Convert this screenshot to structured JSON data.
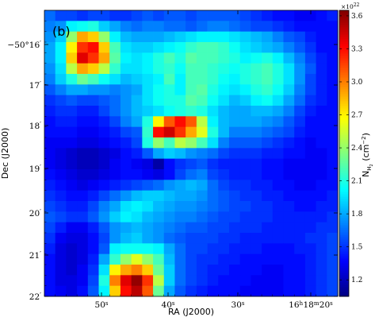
{
  "chart_data": {
    "type": "heatmap",
    "panel_label": "(b)",
    "xlabel": "RA (J2000)",
    "ylabel": "Dec (J2000)",
    "x_ticks": [
      {
        "label": "50",
        "sup": "s"
      },
      {
        "label": "40",
        "sup": "s"
      },
      {
        "label": "30",
        "sup": "s"
      },
      {
        "label": "16",
        "sup": "h",
        "label2": "18",
        "sup2": "m",
        "label3": "20",
        "sup3": "s"
      }
    ],
    "y_ticks": [
      {
        "label": "−50°16",
        "sup": "′"
      },
      {
        "label": "17",
        "sup": "′"
      },
      {
        "label": "18",
        "sup": "′"
      },
      {
        "label": "19",
        "sup": "′"
      },
      {
        "label": "20",
        "sup": "′"
      },
      {
        "label": "21",
        "sup": "′"
      },
      {
        "label": "22",
        "sup": "′"
      }
    ],
    "colorbar": {
      "label": "N",
      "label_sub": "H",
      "label_subsub": "2",
      "label_unit": " (cm",
      "label_unit_sup": "−2",
      "label_close": ")",
      "multiplier": "×10",
      "multiplier_exp": "22",
      "range": [
        1.05,
        3.65
      ],
      "ticks": [
        "1.2",
        "1.5",
        "1.8",
        "2.1",
        "2.4",
        "2.7",
        "3.0",
        "3.3",
        "3.6"
      ],
      "tick_values": [
        1.2,
        1.5,
        1.8,
        2.1,
        2.4,
        2.7,
        3.0,
        3.3,
        3.6
      ],
      "colormap": "jet"
    },
    "grid": [
      [
        1.65,
        1.55,
        1.55,
        1.5,
        1.55,
        1.55,
        1.5,
        1.5,
        1.55,
        1.6,
        1.55,
        1.6,
        1.6,
        1.55,
        1.6,
        1.6,
        1.6,
        1.6,
        1.55,
        1.5,
        1.45,
        1.4,
        1.4,
        1.35,
        1.35,
        1.4,
        1.45
      ],
      [
        1.7,
        1.75,
        2.0,
        2.05,
        2.1,
        1.9,
        1.8,
        1.7,
        1.65,
        1.7,
        1.7,
        1.65,
        1.65,
        1.6,
        1.65,
        1.7,
        1.7,
        1.65,
        1.6,
        1.55,
        1.55,
        1.5,
        1.45,
        1.4,
        1.4,
        1.4,
        1.4
      ],
      [
        1.75,
        1.9,
        2.4,
        2.9,
        2.8,
        2.4,
        2.0,
        1.85,
        1.8,
        1.8,
        1.8,
        1.85,
        1.9,
        1.95,
        2.0,
        2.0,
        2.0,
        1.95,
        1.9,
        1.85,
        1.8,
        1.7,
        1.6,
        1.55,
        1.45,
        1.4,
        1.4
      ],
      [
        1.8,
        2.0,
        2.7,
        3.2,
        3.3,
        2.8,
        2.2,
        1.95,
        1.9,
        1.9,
        1.95,
        2.0,
        2.05,
        2.15,
        2.2,
        2.2,
        2.15,
        2.05,
        1.95,
        1.9,
        1.85,
        1.8,
        1.7,
        1.6,
        1.5,
        1.4,
        1.4
      ],
      [
        1.8,
        2.0,
        2.8,
        3.4,
        3.2,
        2.9,
        2.25,
        2.0,
        1.95,
        2.0,
        2.1,
        2.2,
        2.1,
        2.25,
        2.2,
        2.2,
        2.15,
        2.1,
        2.0,
        2.05,
        2.1,
        2.0,
        1.85,
        1.7,
        1.55,
        1.45,
        1.4
      ],
      [
        1.75,
        1.95,
        2.5,
        2.9,
        2.8,
        2.5,
        2.15,
        1.95,
        1.95,
        2.0,
        2.1,
        2.15,
        2.05,
        2.2,
        2.2,
        2.15,
        2.1,
        2.05,
        2.1,
        2.15,
        2.2,
        2.1,
        1.95,
        1.75,
        1.6,
        1.45,
        1.4
      ],
      [
        1.7,
        1.9,
        2.1,
        2.3,
        2.2,
        2.05,
        1.95,
        1.85,
        1.9,
        1.95,
        2.0,
        2.2,
        2.0,
        2.2,
        2.2,
        2.15,
        2.05,
        2.0,
        2.1,
        2.15,
        2.2,
        2.1,
        1.95,
        1.75,
        1.55,
        1.45,
        1.4
      ],
      [
        1.6,
        1.7,
        1.8,
        1.8,
        1.75,
        1.75,
        1.7,
        1.75,
        1.8,
        1.95,
        2.05,
        2.1,
        2.0,
        2.2,
        2.25,
        2.1,
        2.0,
        1.95,
        2.0,
        2.1,
        2.15,
        2.05,
        1.9,
        1.7,
        1.55,
        1.45,
        1.4
      ],
      [
        1.5,
        1.55,
        1.6,
        1.55,
        1.55,
        1.6,
        1.65,
        1.75,
        1.85,
        1.95,
        2.05,
        2.1,
        2.1,
        2.25,
        2.2,
        2.05,
        1.95,
        1.85,
        1.9,
        2.0,
        2.05,
        1.95,
        1.8,
        1.65,
        1.5,
        1.45,
        1.4
      ],
      [
        1.45,
        1.5,
        1.5,
        1.45,
        1.45,
        1.55,
        1.65,
        1.75,
        1.85,
        1.9,
        1.95,
        2.05,
        2.1,
        2.15,
        2.1,
        1.95,
        1.85,
        1.8,
        1.8,
        1.85,
        1.85,
        1.8,
        1.7,
        1.55,
        1.45,
        1.4,
        1.4
      ],
      [
        1.4,
        1.45,
        1.45,
        1.4,
        1.4,
        1.45,
        1.55,
        1.7,
        1.8,
        2.1,
        2.7,
        3.1,
        3.3,
        3.1,
        2.5,
        2.0,
        1.85,
        1.8,
        1.8,
        1.8,
        1.75,
        1.7,
        1.6,
        1.5,
        1.4,
        1.4,
        1.4
      ],
      [
        1.4,
        1.4,
        1.4,
        1.35,
        1.35,
        1.4,
        1.45,
        1.55,
        1.6,
        2.15,
        3.3,
        3.45,
        3.2,
        2.9,
        2.6,
        2.1,
        1.85,
        1.7,
        1.7,
        1.7,
        1.65,
        1.6,
        1.55,
        1.45,
        1.4,
        1.4,
        1.4
      ],
      [
        1.35,
        1.35,
        1.35,
        1.3,
        1.3,
        1.35,
        1.4,
        1.45,
        1.55,
        2.1,
        2.4,
        2.2,
        2.5,
        2.4,
        2.2,
        1.95,
        1.7,
        1.6,
        1.6,
        1.6,
        1.55,
        1.5,
        1.45,
        1.4,
        1.35,
        1.4,
        1.4
      ],
      [
        1.35,
        1.3,
        1.25,
        1.2,
        1.2,
        1.25,
        1.3,
        1.4,
        1.45,
        1.6,
        1.8,
        1.9,
        1.85,
        1.75,
        1.7,
        1.65,
        1.55,
        1.5,
        1.5,
        1.5,
        1.45,
        1.45,
        1.4,
        1.4,
        1.35,
        1.35,
        1.4
      ],
      [
        1.35,
        1.3,
        1.25,
        1.2,
        1.2,
        1.25,
        1.35,
        1.4,
        1.35,
        1.3,
        1.15,
        1.4,
        1.5,
        1.55,
        1.6,
        1.5,
        1.45,
        1.45,
        1.45,
        1.45,
        1.4,
        1.4,
        1.35,
        1.35,
        1.35,
        1.35,
        1.4
      ],
      [
        1.4,
        1.35,
        1.3,
        1.25,
        1.25,
        1.3,
        1.35,
        1.4,
        1.4,
        1.35,
        1.3,
        1.4,
        1.55,
        1.65,
        1.7,
        1.55,
        1.5,
        1.45,
        1.45,
        1.45,
        1.4,
        1.4,
        1.35,
        1.35,
        1.35,
        1.35,
        1.4
      ],
      [
        1.45,
        1.4,
        1.35,
        1.3,
        1.35,
        1.4,
        1.45,
        1.5,
        1.55,
        1.6,
        1.65,
        1.75,
        1.8,
        1.85,
        1.8,
        1.65,
        1.55,
        1.5,
        1.5,
        1.45,
        1.45,
        1.4,
        1.4,
        1.35,
        1.35,
        1.4,
        1.4
      ],
      [
        1.5,
        1.45,
        1.4,
        1.4,
        1.45,
        1.55,
        1.65,
        1.75,
        1.85,
        1.9,
        1.9,
        1.85,
        1.8,
        1.8,
        1.75,
        1.65,
        1.6,
        1.55,
        1.5,
        1.5,
        1.45,
        1.45,
        1.4,
        1.4,
        1.4,
        1.4,
        1.45
      ],
      [
        1.55,
        1.5,
        1.45,
        1.45,
        1.55,
        1.7,
        1.8,
        1.95,
        2.0,
        1.95,
        1.85,
        1.8,
        1.75,
        1.75,
        1.7,
        1.65,
        1.6,
        1.55,
        1.55,
        1.5,
        1.5,
        1.45,
        1.45,
        1.4,
        1.4,
        1.45,
        1.45
      ],
      [
        1.6,
        1.55,
        1.5,
        1.5,
        1.6,
        1.75,
        1.9,
        2.0,
        1.95,
        1.85,
        1.8,
        1.75,
        1.7,
        1.7,
        1.65,
        1.6,
        1.55,
        1.55,
        1.5,
        1.5,
        1.5,
        1.45,
        1.45,
        1.45,
        1.45,
        1.45,
        1.5
      ],
      [
        1.55,
        1.45,
        1.35,
        1.35,
        1.45,
        1.6,
        1.75,
        1.8,
        1.85,
        1.8,
        1.75,
        1.7,
        1.65,
        1.6,
        1.6,
        1.55,
        1.55,
        1.5,
        1.5,
        1.5,
        1.45,
        1.45,
        1.45,
        1.45,
        1.45,
        1.5,
        1.5
      ],
      [
        1.5,
        1.35,
        1.3,
        1.3,
        1.4,
        1.55,
        1.75,
        1.85,
        1.9,
        1.8,
        1.75,
        1.65,
        1.6,
        1.55,
        1.55,
        1.55,
        1.5,
        1.5,
        1.45,
        1.45,
        1.45,
        1.45,
        1.45,
        1.45,
        1.5,
        1.5,
        1.55
      ],
      [
        1.45,
        1.3,
        1.25,
        1.3,
        1.4,
        1.6,
        2.0,
        2.05,
        2.05,
        2.05,
        2.0,
        1.8,
        1.65,
        1.55,
        1.55,
        1.5,
        1.5,
        1.45,
        1.45,
        1.45,
        1.4,
        1.4,
        1.4,
        1.45,
        1.45,
        1.5,
        1.55
      ],
      [
        1.4,
        1.3,
        1.25,
        1.3,
        1.45,
        1.8,
        2.15,
        2.4,
        2.6,
        2.4,
        2.2,
        1.85,
        1.65,
        1.55,
        1.5,
        1.5,
        1.45,
        1.45,
        1.4,
        1.4,
        1.4,
        1.4,
        1.4,
        1.4,
        1.45,
        1.5,
        1.55
      ],
      [
        1.4,
        1.3,
        1.25,
        1.35,
        1.5,
        1.95,
        2.7,
        2.9,
        3.0,
        2.8,
        2.3,
        1.9,
        1.65,
        1.55,
        1.5,
        1.45,
        1.45,
        1.4,
        1.4,
        1.4,
        1.35,
        1.35,
        1.4,
        1.4,
        1.45,
        1.5,
        1.55
      ],
      [
        1.4,
        1.3,
        1.3,
        1.35,
        1.55,
        2.1,
        3.0,
        3.4,
        3.6,
        3.2,
        2.5,
        1.9,
        1.65,
        1.55,
        1.5,
        1.45,
        1.4,
        1.4,
        1.4,
        1.35,
        1.35,
        1.35,
        1.4,
        1.4,
        1.45,
        1.5,
        1.55
      ],
      [
        1.4,
        1.35,
        1.3,
        1.4,
        1.6,
        2.0,
        2.8,
        3.3,
        3.5,
        3.1,
        2.3,
        1.8,
        1.6,
        1.5,
        1.45,
        1.4,
        1.4,
        1.4,
        1.35,
        1.35,
        1.35,
        1.35,
        1.4,
        1.4,
        1.45,
        1.5,
        1.55
      ]
    ]
  }
}
